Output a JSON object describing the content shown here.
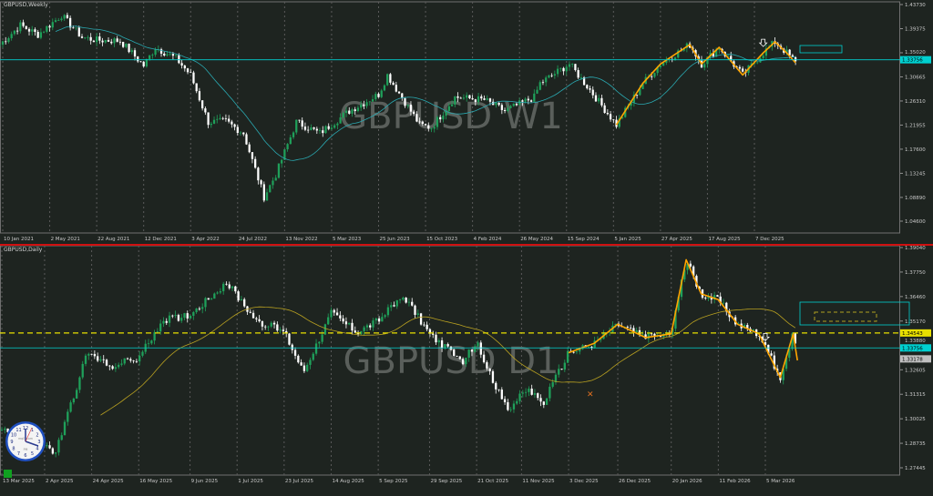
{
  "colors": {
    "bg": "#1e2420",
    "bull": "#1fa05a",
    "bear": "#ffffff",
    "ma_weekly": "#2aa8b0",
    "ma_daily": "#b8a020",
    "zigzag": "#ffa500",
    "cyan": "#00d0d0",
    "yellow": "#e8e000",
    "separator": "#d01010"
  },
  "chart_data": [
    {
      "type": "candlestick",
      "title": "GBPUSD,Weekly",
      "watermark": "GBPUSD W1",
      "ylim": [
        1.046,
        1.4373
      ],
      "yticks": [
        "1.43730",
        "1.39375",
        "1.35020",
        "1.30665",
        "1.26310",
        "1.21955",
        "1.17600",
        "1.13245",
        "1.08890",
        "1.04600"
      ],
      "xticks": [
        "10 Jan 2021",
        "2 May 2021",
        "22 Aug 2021",
        "12 Dec 2021",
        "3 Apr 2022",
        "24 Jul 2022",
        "13 Nov 2022",
        "5 Mar 2023",
        "25 Jun 2023",
        "15 Oct 2023",
        "4 Feb 2024",
        "26 May 2024",
        "15 Sep 2024",
        "5 Jan 2025",
        "27 Apr 2025",
        "17 Aug 2025",
        "7 Dec 2025"
      ],
      "xtick_dates": [
        "2021-01-10",
        "2021-05-02",
        "2021-08-22",
        "2021-12-12",
        "2022-04-03",
        "2022-07-24",
        "2022-11-13",
        "2023-03-05",
        "2023-06-25",
        "2023-10-15",
        "2024-02-04",
        "2024-05-26",
        "2024-09-15",
        "2025-01-05",
        "2025-04-27",
        "2025-08-17",
        "2025-12-07"
      ],
      "closes": [
        [
          "2021-01-03",
          1.365
        ],
        [
          "2021-02-21",
          1.4
        ],
        [
          "2021-04-04",
          1.383
        ],
        [
          "2021-05-30",
          1.418
        ],
        [
          "2021-07-18",
          1.378
        ],
        [
          "2021-08-22",
          1.373
        ],
        [
          "2021-10-17",
          1.372
        ],
        [
          "2021-12-12",
          1.327
        ],
        [
          "2022-01-09",
          1.36
        ],
        [
          "2022-02-27",
          1.34
        ],
        [
          "2022-04-03",
          1.31
        ],
        [
          "2022-05-15",
          1.225
        ],
        [
          "2022-06-26",
          1.226
        ],
        [
          "2022-08-07",
          1.205
        ],
        [
          "2022-09-25",
          1.09
        ],
        [
          "2022-10-23",
          1.13
        ],
        [
          "2022-12-11",
          1.225
        ],
        [
          "2023-02-05",
          1.205
        ],
        [
          "2023-04-16",
          1.245
        ],
        [
          "2023-06-25",
          1.275
        ],
        [
          "2023-07-16",
          1.31
        ],
        [
          "2023-10-01",
          1.22
        ],
        [
          "2023-10-29",
          1.215
        ],
        [
          "2023-12-24",
          1.27
        ],
        [
          "2024-03-03",
          1.265
        ],
        [
          "2024-04-21",
          1.245
        ],
        [
          "2024-06-30",
          1.27
        ],
        [
          "2024-07-14",
          1.295
        ],
        [
          "2024-09-22",
          1.33
        ],
        [
          "2024-11-03",
          1.29
        ],
        [
          "2025-01-12",
          1.22
        ],
        [
          "2025-03-16",
          1.295
        ],
        [
          "2025-04-27",
          1.33
        ],
        [
          "2025-07-06",
          1.365
        ],
        [
          "2025-08-03",
          1.33
        ],
        [
          "2025-09-14",
          1.36
        ],
        [
          "2025-11-09",
          1.31
        ],
        [
          "2025-12-28",
          1.35
        ],
        [
          "2026-01-25",
          1.37
        ],
        [
          "2026-02-22",
          1.35
        ],
        [
          "2026-03-15",
          1.332
        ]
      ],
      "ma_period": 20,
      "zigzag_from": "2025-01-12",
      "hlines": [
        {
          "price": 1.33756,
          "label": "1.33756",
          "color": "#00d0d0"
        }
      ],
      "current_price": "1.33756"
    },
    {
      "type": "candlestick",
      "title": "GBPUSD,Daily",
      "watermark": "GBPUSD D1",
      "ylim": [
        1.27445,
        1.3904
      ],
      "yticks": [
        "1.39040",
        "1.37750",
        "1.36460",
        "1.35170",
        "1.33880",
        "1.32605",
        "1.31315",
        "1.30025",
        "1.28735",
        "1.27445"
      ],
      "xticks": [
        "13 Mar 2025",
        "2 Apr 2025",
        "24 Apr 2025",
        "16 May 2025",
        "9 Jun 2025",
        "1 Jul 2025",
        "23 Jul 2025",
        "14 Aug 2025",
        "5 Sep 2025",
        "29 Sep 2025",
        "21 Oct 2025",
        "11 Nov 2025",
        "3 Dec 2025",
        "26 Dec 2025",
        "20 Jan 2026",
        "11 Feb 2026",
        "5 Mar 2026"
      ],
      "xtick_dates": [
        "2025-03-13",
        "2025-04-02",
        "2025-04-24",
        "2025-05-16",
        "2025-06-09",
        "2025-07-01",
        "2025-07-23",
        "2025-08-14",
        "2025-09-05",
        "2025-09-29",
        "2025-10-21",
        "2025-11-11",
        "2025-12-03",
        "2025-12-26",
        "2026-01-20",
        "2026-02-11",
        "2026-03-05"
      ],
      "closes": [
        [
          "2025-03-13",
          1.295
        ],
        [
          "2025-03-28",
          1.29
        ],
        [
          "2025-04-07",
          1.282
        ],
        [
          "2025-04-22",
          1.335
        ],
        [
          "2025-05-02",
          1.328
        ],
        [
          "2025-05-16",
          1.332
        ],
        [
          "2025-05-27",
          1.352
        ],
        [
          "2025-06-09",
          1.355
        ],
        [
          "2025-06-26",
          1.372
        ],
        [
          "2025-07-10",
          1.352
        ],
        [
          "2025-07-23",
          1.346
        ],
        [
          "2025-08-01",
          1.325
        ],
        [
          "2025-08-14",
          1.356
        ],
        [
          "2025-08-26",
          1.346
        ],
        [
          "2025-09-05",
          1.352
        ],
        [
          "2025-09-17",
          1.365
        ],
        [
          "2025-09-29",
          1.345
        ],
        [
          "2025-10-14",
          1.33
        ],
        [
          "2025-10-21",
          1.34
        ],
        [
          "2025-11-04",
          1.305
        ],
        [
          "2025-11-14",
          1.316
        ],
        [
          "2025-11-21",
          1.308
        ],
        [
          "2025-12-03",
          1.335
        ],
        [
          "2025-12-15",
          1.34
        ],
        [
          "2025-12-26",
          1.35
        ],
        [
          "2026-01-08",
          1.343
        ],
        [
          "2026-01-20",
          1.345
        ],
        [
          "2026-01-27",
          1.384
        ],
        [
          "2026-02-03",
          1.366
        ],
        [
          "2026-02-11",
          1.363
        ],
        [
          "2026-02-20",
          1.35
        ],
        [
          "2026-03-02",
          1.345
        ],
        [
          "2026-03-05",
          1.338
        ],
        [
          "2026-03-12",
          1.322
        ],
        [
          "2026-03-18",
          1.345
        ],
        [
          "2026-03-20",
          1.331
        ]
      ],
      "ma_period": 34,
      "zigzag_from": "2025-12-03",
      "hlines": [
        {
          "price": 1.34543,
          "label": "1.34543",
          "color": "#e8e000",
          "dashed": true
        },
        {
          "price": 1.33756,
          "label": "1.33756",
          "color": "#00d0d0"
        },
        {
          "price": 1.33178,
          "label": "1.33178",
          "color": "#c0c0c0",
          "label_only": true
        }
      ],
      "current_price": "1.33178"
    }
  ],
  "clock": {
    "brand": "mql5.com",
    "label": "PM"
  }
}
